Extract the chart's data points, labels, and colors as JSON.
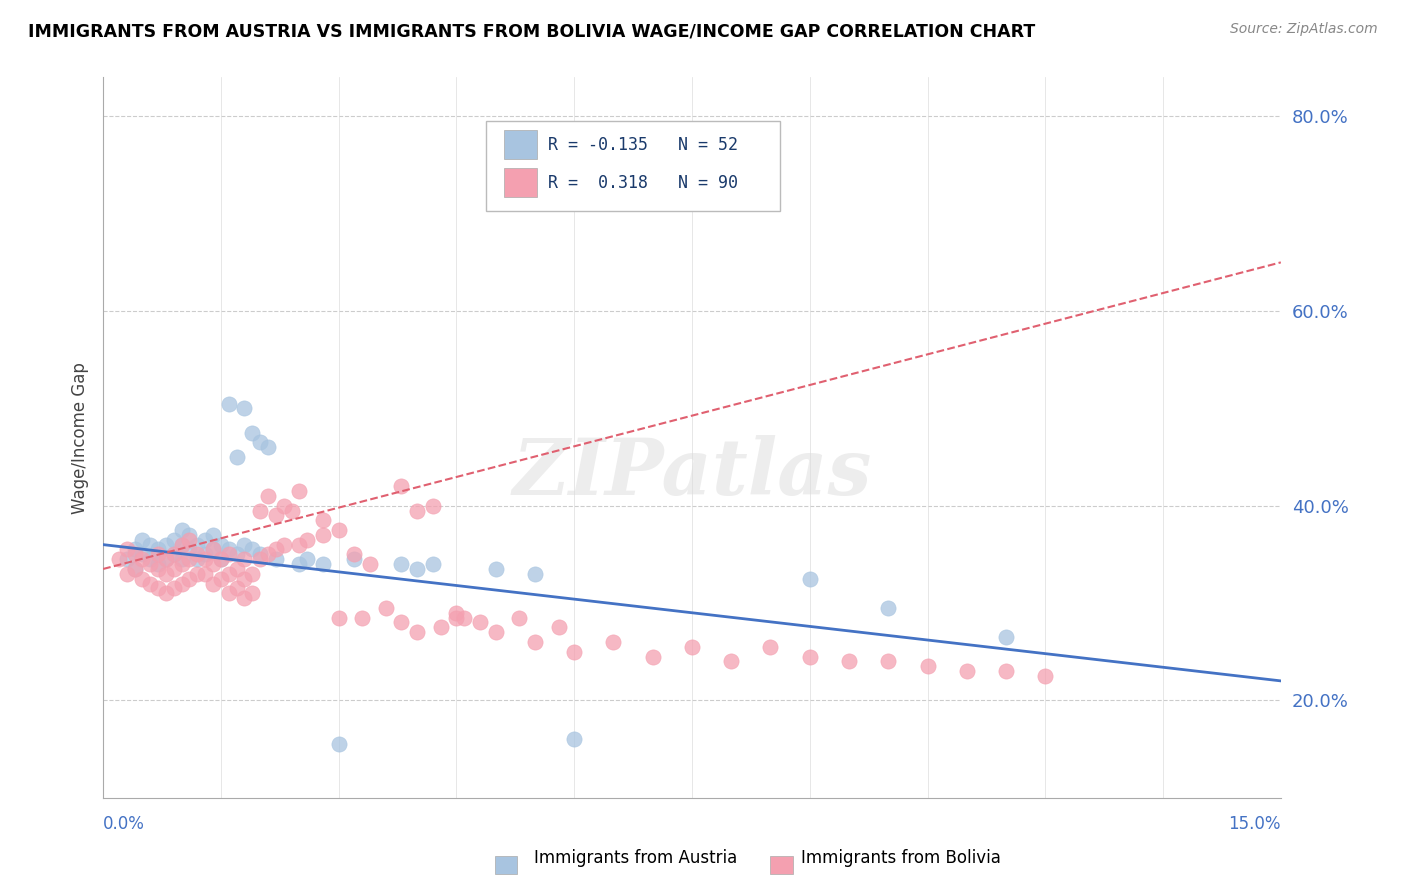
{
  "title": "IMMIGRANTS FROM AUSTRIA VS IMMIGRANTS FROM BOLIVIA WAGE/INCOME GAP CORRELATION CHART",
  "source": "Source: ZipAtlas.com",
  "ylabel": "Wage/Income Gap",
  "austria_color": "#a8c4e0",
  "bolivia_color": "#f4a0b0",
  "austria_line_color": "#4472c4",
  "bolivia_line_color": "#e06070",
  "xmin": 0.0,
  "xmax": 0.15,
  "ymin": 0.1,
  "ymax": 0.84,
  "right_yticks": [
    0.2,
    0.4,
    0.6,
    0.8
  ],
  "right_ylabels": [
    "20.0%",
    "40.0%",
    "60.0%",
    "80.0%"
  ],
  "austria_scatter": [
    [
      0.003,
      0.345
    ],
    [
      0.004,
      0.335
    ],
    [
      0.004,
      0.355
    ],
    [
      0.005,
      0.35
    ],
    [
      0.005,
      0.365
    ],
    [
      0.006,
      0.345
    ],
    [
      0.006,
      0.36
    ],
    [
      0.007,
      0.34
    ],
    [
      0.007,
      0.355
    ],
    [
      0.008,
      0.345
    ],
    [
      0.008,
      0.36
    ],
    [
      0.009,
      0.35
    ],
    [
      0.009,
      0.365
    ],
    [
      0.01,
      0.345
    ],
    [
      0.01,
      0.36
    ],
    [
      0.01,
      0.375
    ],
    [
      0.011,
      0.355
    ],
    [
      0.011,
      0.37
    ],
    [
      0.012,
      0.345
    ],
    [
      0.012,
      0.36
    ],
    [
      0.013,
      0.35
    ],
    [
      0.013,
      0.365
    ],
    [
      0.014,
      0.355
    ],
    [
      0.014,
      0.37
    ],
    [
      0.015,
      0.345
    ],
    [
      0.015,
      0.36
    ],
    [
      0.016,
      0.505
    ],
    [
      0.016,
      0.355
    ],
    [
      0.017,
      0.45
    ],
    [
      0.017,
      0.35
    ],
    [
      0.018,
      0.36
    ],
    [
      0.018,
      0.5
    ],
    [
      0.019,
      0.355
    ],
    [
      0.019,
      0.475
    ],
    [
      0.02,
      0.35
    ],
    [
      0.02,
      0.465
    ],
    [
      0.021,
      0.46
    ],
    [
      0.022,
      0.345
    ],
    [
      0.025,
      0.34
    ],
    [
      0.026,
      0.345
    ],
    [
      0.028,
      0.34
    ],
    [
      0.03,
      0.155
    ],
    [
      0.032,
      0.345
    ],
    [
      0.038,
      0.34
    ],
    [
      0.04,
      0.335
    ],
    [
      0.042,
      0.34
    ],
    [
      0.05,
      0.335
    ],
    [
      0.055,
      0.33
    ],
    [
      0.06,
      0.16
    ],
    [
      0.09,
      0.325
    ],
    [
      0.1,
      0.295
    ],
    [
      0.115,
      0.265
    ]
  ],
  "bolivia_scatter": [
    [
      0.002,
      0.345
    ],
    [
      0.003,
      0.33
    ],
    [
      0.003,
      0.355
    ],
    [
      0.004,
      0.335
    ],
    [
      0.004,
      0.35
    ],
    [
      0.005,
      0.325
    ],
    [
      0.005,
      0.345
    ],
    [
      0.006,
      0.32
    ],
    [
      0.006,
      0.34
    ],
    [
      0.007,
      0.315
    ],
    [
      0.007,
      0.335
    ],
    [
      0.007,
      0.35
    ],
    [
      0.008,
      0.31
    ],
    [
      0.008,
      0.33
    ],
    [
      0.008,
      0.345
    ],
    [
      0.009,
      0.315
    ],
    [
      0.009,
      0.335
    ],
    [
      0.009,
      0.35
    ],
    [
      0.01,
      0.32
    ],
    [
      0.01,
      0.34
    ],
    [
      0.01,
      0.36
    ],
    [
      0.011,
      0.325
    ],
    [
      0.011,
      0.345
    ],
    [
      0.011,
      0.365
    ],
    [
      0.012,
      0.33
    ],
    [
      0.012,
      0.35
    ],
    [
      0.013,
      0.33
    ],
    [
      0.013,
      0.345
    ],
    [
      0.014,
      0.32
    ],
    [
      0.014,
      0.34
    ],
    [
      0.014,
      0.355
    ],
    [
      0.015,
      0.325
    ],
    [
      0.015,
      0.345
    ],
    [
      0.016,
      0.31
    ],
    [
      0.016,
      0.33
    ],
    [
      0.016,
      0.35
    ],
    [
      0.017,
      0.315
    ],
    [
      0.017,
      0.335
    ],
    [
      0.018,
      0.305
    ],
    [
      0.018,
      0.325
    ],
    [
      0.018,
      0.345
    ],
    [
      0.019,
      0.31
    ],
    [
      0.019,
      0.33
    ],
    [
      0.02,
      0.395
    ],
    [
      0.02,
      0.345
    ],
    [
      0.021,
      0.35
    ],
    [
      0.021,
      0.41
    ],
    [
      0.022,
      0.39
    ],
    [
      0.022,
      0.355
    ],
    [
      0.023,
      0.4
    ],
    [
      0.023,
      0.36
    ],
    [
      0.024,
      0.395
    ],
    [
      0.025,
      0.36
    ],
    [
      0.025,
      0.415
    ],
    [
      0.026,
      0.365
    ],
    [
      0.028,
      0.37
    ],
    [
      0.028,
      0.385
    ],
    [
      0.03,
      0.375
    ],
    [
      0.03,
      0.285
    ],
    [
      0.032,
      0.35
    ],
    [
      0.033,
      0.285
    ],
    [
      0.034,
      0.34
    ],
    [
      0.036,
      0.295
    ],
    [
      0.038,
      0.42
    ],
    [
      0.038,
      0.28
    ],
    [
      0.04,
      0.395
    ],
    [
      0.04,
      0.27
    ],
    [
      0.042,
      0.4
    ],
    [
      0.043,
      0.275
    ],
    [
      0.045,
      0.285
    ],
    [
      0.045,
      0.29
    ],
    [
      0.046,
      0.285
    ],
    [
      0.048,
      0.28
    ],
    [
      0.05,
      0.27
    ],
    [
      0.053,
      0.285
    ],
    [
      0.055,
      0.26
    ],
    [
      0.058,
      0.275
    ],
    [
      0.06,
      0.25
    ],
    [
      0.065,
      0.26
    ],
    [
      0.07,
      0.245
    ],
    [
      0.075,
      0.255
    ],
    [
      0.08,
      0.24
    ],
    [
      0.085,
      0.255
    ],
    [
      0.09,
      0.245
    ],
    [
      0.095,
      0.24
    ],
    [
      0.1,
      0.24
    ],
    [
      0.105,
      0.235
    ],
    [
      0.11,
      0.23
    ],
    [
      0.115,
      0.23
    ],
    [
      0.12,
      0.225
    ]
  ]
}
